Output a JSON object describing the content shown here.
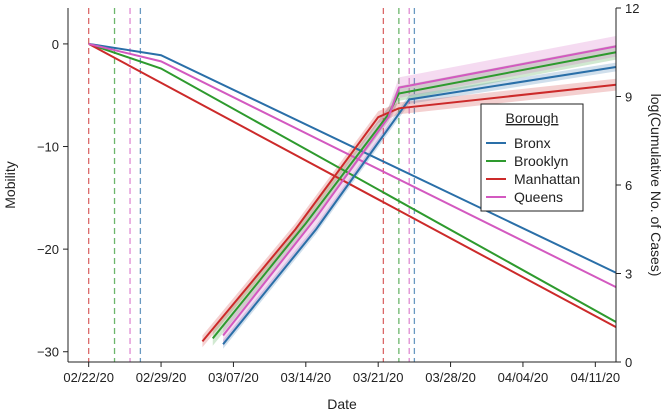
{
  "chart_data": {
    "type": "line",
    "title": "",
    "xlabel": "Date",
    "ylabel_left": "Mobility",
    "ylabel_right": "log(Cumulative No. of Cases)",
    "x_ticks": [
      "02/22/20",
      "02/29/20",
      "03/07/20",
      "03/14/20",
      "03/21/20",
      "03/28/20",
      "04/04/20",
      "04/11/20"
    ],
    "x_range_days": [
      -2,
      51
    ],
    "y_left_ticks": [
      0,
      -10,
      -20,
      -30
    ],
    "y_left_tick_labels": [
      "0",
      "−10",
      "−20",
      "−30"
    ],
    "y_left_range": [
      -31,
      3.5
    ],
    "y_right_ticks": [
      0,
      3,
      6,
      9,
      12
    ],
    "y_right_tick_labels": [
      "0",
      "3",
      "6",
      "9",
      "12"
    ],
    "y_right_range": [
      0,
      12
    ],
    "grid": false,
    "legend": {
      "title": "Borough",
      "position": "right",
      "entries": [
        "Bronx",
        "Brooklyn",
        "Manhattan",
        "Queens"
      ]
    },
    "colors": {
      "Bronx": "#2a6fa8",
      "Brooklyn": "#2e9a2e",
      "Manhattan": "#cc2a2a",
      "Queens": "#d359c0",
      "axis": "#222222"
    },
    "vertical_lines_days": {
      "Bronx": [
        5,
        31.5
      ],
      "Brooklyn": [
        2.5,
        30
      ],
      "Manhattan": [
        0,
        28.5
      ],
      "Queens": [
        4,
        31
      ]
    },
    "mobility_series": [
      {
        "name": "Bronx",
        "points": [
          [
            0,
            0
          ],
          [
            7,
            -1.1
          ],
          [
            51,
            -22.3
          ]
        ]
      },
      {
        "name": "Brooklyn",
        "points": [
          [
            0,
            0
          ],
          [
            7,
            -2.4
          ],
          [
            51,
            -27.1
          ]
        ]
      },
      {
        "name": "Manhattan",
        "points": [
          [
            0,
            0
          ],
          [
            51,
            -27.6
          ]
        ]
      },
      {
        "name": "Queens",
        "points": [
          [
            0,
            0
          ],
          [
            7,
            -1.7
          ],
          [
            51,
            -23.7
          ]
        ]
      }
    ],
    "cases_series": [
      {
        "name": "Bronx",
        "points": [
          [
            13,
            0.6
          ],
          [
            22,
            4.5
          ],
          [
            31,
            8.9
          ],
          [
            51,
            10.0
          ]
        ],
        "band": 0.15
      },
      {
        "name": "Brooklyn",
        "points": [
          [
            12,
            0.8
          ],
          [
            21,
            4.7
          ],
          [
            29,
            8.4
          ],
          [
            30,
            9.1
          ],
          [
            51,
            10.5
          ]
        ],
        "band": 0.25
      },
      {
        "name": "Manhattan",
        "points": [
          [
            11,
            0.7
          ],
          [
            20,
            4.5
          ],
          [
            28,
            8.3
          ],
          [
            30,
            8.6
          ],
          [
            51,
            9.4
          ]
        ],
        "band": 0.2
      },
      {
        "name": "Queens",
        "points": [
          [
            13,
            0.9
          ],
          [
            22,
            4.9
          ],
          [
            29,
            8.3
          ],
          [
            30,
            9.3
          ],
          [
            51,
            10.7
          ]
        ],
        "band": 0.35
      }
    ]
  }
}
